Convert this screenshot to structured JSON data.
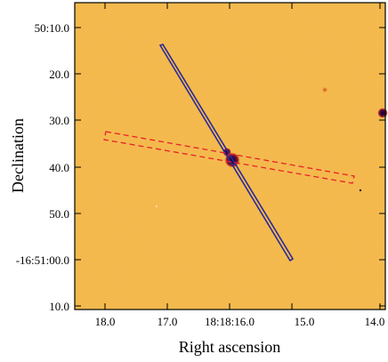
{
  "image": {
    "background_color": "#f5b84a",
    "colormap": "heat"
  },
  "axes": {
    "xlabel": "Right ascension",
    "ylabel": "Declination",
    "x_ticks": [
      "18.0",
      "17.0",
      "18:18:16.0",
      "15.0",
      "14.0"
    ],
    "y_ticks": [
      "50:10.0",
      "20.0",
      "30.0",
      "40.0",
      "50.0",
      "-16:51:00.0",
      "10.0"
    ]
  },
  "overlays": {
    "slit_long": {
      "stroke_color": "#2a2a9a",
      "style": "solid double line"
    },
    "slit_dashed": {
      "stroke_color": "#e8202a",
      "style": "dashed"
    }
  },
  "sources": {
    "main_target_color": "#2a0a3a",
    "secondary_source_color": "#e0501a"
  }
}
